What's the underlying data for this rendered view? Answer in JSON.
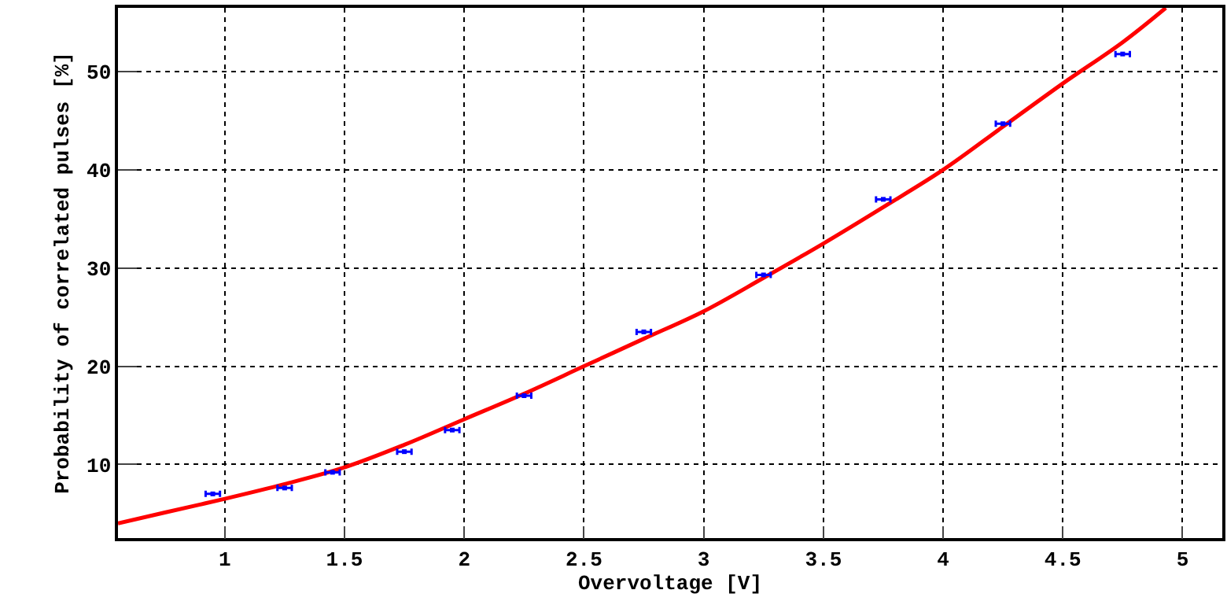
{
  "chart_data": {
    "type": "scatter",
    "xlabel": "Overvoltage [V]",
    "ylabel": "Probability of correlated pulses [%]",
    "xlim": [
      0.554,
      5.166
    ],
    "xticks": [
      1,
      1.5,
      2,
      2.5,
      3,
      3.5,
      4,
      4.5,
      5
    ],
    "ylim": [
      2.5,
      56.5
    ],
    "yticks": [
      10,
      20,
      30,
      40,
      50
    ],
    "grid": true,
    "series": [
      {
        "color": "#0000ff",
        "marker": "square",
        "x": [
          0.95,
          1.25,
          1.45,
          1.75,
          1.95,
          2.25,
          2.75,
          3.25,
          3.75,
          4.25,
          4.75
        ],
        "values": [
          7.0,
          7.6,
          9.2,
          11.3,
          13.5,
          17.0,
          23.5,
          29.3,
          37.0,
          44.7,
          51.8
        ],
        "xerrors": [
          0.03,
          0.03,
          0.03,
          0.03,
          0.03,
          0.03,
          0.03,
          0.03,
          0.03,
          0.03,
          0.03
        ]
      },
      {
        "type": "line",
        "color": "#ff0000",
        "line_style": "solid",
        "marker": "none",
        "x": [
          0.554,
          0.75,
          1,
          1.25,
          1.5,
          1.75,
          2,
          2.25,
          2.5,
          2.75,
          3,
          3.25,
          3.5,
          3.75,
          4,
          4.25,
          4.5,
          4.75,
          4.93
        ],
        "values": [
          4.0,
          5.1,
          6.5,
          8.0,
          9.7,
          12.0,
          14.6,
          17.2,
          20.0,
          22.8,
          25.6,
          29.0,
          32.5,
          36.2,
          40.0,
          44.4,
          48.8,
          53.0,
          56.5
        ]
      }
    ]
  }
}
